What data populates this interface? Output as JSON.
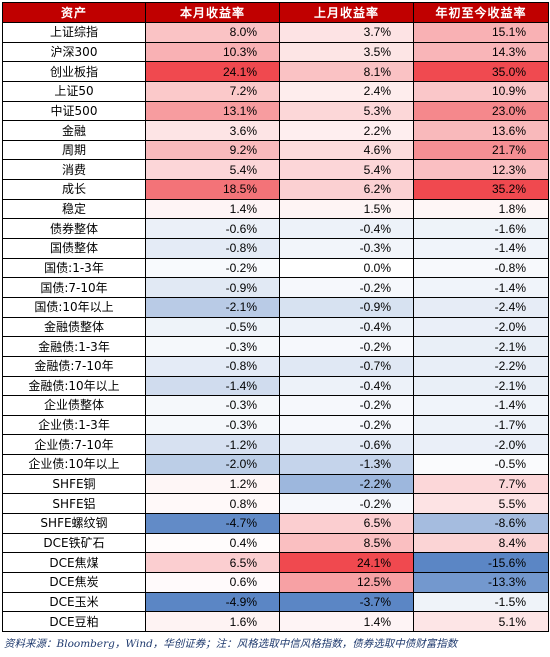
{
  "headers": [
    "资产",
    "本月收益率",
    "上月收益率",
    "年初至今收益率"
  ],
  "rows": [
    {
      "name": "上证综指",
      "m": "8.0%",
      "p": "3.7%",
      "y": "15.1%"
    },
    {
      "name": "沪深300",
      "m": "10.3%",
      "p": "3.5%",
      "y": "14.3%"
    },
    {
      "name": "创业板指",
      "m": "24.1%",
      "p": "8.1%",
      "y": "35.0%"
    },
    {
      "name": "上证50",
      "m": "7.2%",
      "p": "2.4%",
      "y": "10.9%"
    },
    {
      "name": "中证500",
      "m": "13.1%",
      "p": "5.3%",
      "y": "23.0%"
    },
    {
      "name": "金融",
      "m": "3.6%",
      "p": "2.2%",
      "y": "13.6%"
    },
    {
      "name": "周期",
      "m": "9.2%",
      "p": "4.6%",
      "y": "21.7%"
    },
    {
      "name": "消费",
      "m": "5.4%",
      "p": "5.4%",
      "y": "12.3%"
    },
    {
      "name": "成长",
      "m": "18.5%",
      "p": "6.2%",
      "y": "35.2%"
    },
    {
      "name": "稳定",
      "m": "1.4%",
      "p": "1.5%",
      "y": "1.8%"
    },
    {
      "name": "债券整体",
      "m": "-0.6%",
      "p": "-0.4%",
      "y": "-1.6%"
    },
    {
      "name": "国债整体",
      "m": "-0.8%",
      "p": "-0.3%",
      "y": "-1.4%"
    },
    {
      "name": "国债:1-3年",
      "m": "-0.2%",
      "p": "0.0%",
      "y": "-0.8%"
    },
    {
      "name": "国债:7-10年",
      "m": "-0.9%",
      "p": "-0.2%",
      "y": "-1.4%"
    },
    {
      "name": "国债:10年以上",
      "m": "-2.1%",
      "p": "-0.9%",
      "y": "-2.4%"
    },
    {
      "name": "金融债整体",
      "m": "-0.5%",
      "p": "-0.4%",
      "y": "-2.0%"
    },
    {
      "name": "金融债:1-3年",
      "m": "-0.3%",
      "p": "-0.2%",
      "y": "-2.1%"
    },
    {
      "name": "金融债:7-10年",
      "m": "-0.8%",
      "p": "-0.7%",
      "y": "-2.2%"
    },
    {
      "name": "金融债:10年以上",
      "m": "-1.4%",
      "p": "-0.4%",
      "y": "-2.1%"
    },
    {
      "name": "企业债整体",
      "m": "-0.3%",
      "p": "-0.2%",
      "y": "-1.4%"
    },
    {
      "name": "企业债:1-3年",
      "m": "-0.3%",
      "p": "-0.2%",
      "y": "-1.7%"
    },
    {
      "name": "企业债:7-10年",
      "m": "-1.2%",
      "p": "-0.6%",
      "y": "-2.0%"
    },
    {
      "name": "企业债:10年以上",
      "m": "-2.0%",
      "p": "-1.3%",
      "y": "-0.5%"
    },
    {
      "name": "SHFE铜",
      "m": "1.2%",
      "p": "-2.2%",
      "y": "7.7%"
    },
    {
      "name": "SHFE铝",
      "m": "0.8%",
      "p": "-0.2%",
      "y": "5.5%"
    },
    {
      "name": "SHFE螺纹钢",
      "m": "-4.7%",
      "p": "6.5%",
      "y": "-8.6%"
    },
    {
      "name": "DCE铁矿石",
      "m": "0.4%",
      "p": "8.5%",
      "y": "8.4%"
    },
    {
      "name": "DCE焦煤",
      "m": "6.5%",
      "p": "24.1%",
      "y": "-15.6%"
    },
    {
      "name": "DCE焦炭",
      "m": "0.6%",
      "p": "12.5%",
      "y": "-13.3%"
    },
    {
      "name": "DCE玉米",
      "m": "-4.9%",
      "p": "-3.7%",
      "y": "-1.5%"
    },
    {
      "name": "DCE豆粕",
      "m": "1.6%",
      "p": "1.4%",
      "y": "5.1%"
    }
  ],
  "footnote": "资料来源：Bloomberg，Wind，华创证券；注：风格选取中信风格指数，债券选取中债财富指数",
  "colors": {
    "header_bg": "#c00000",
    "positive_max": "#f0494f",
    "negative_max": "#5b86c5",
    "neutral": "#ffffff"
  }
}
